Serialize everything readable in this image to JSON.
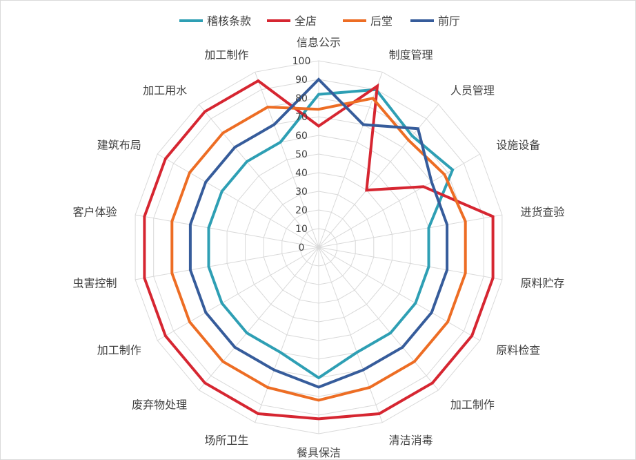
{
  "chart_data": {
    "type": "radar",
    "categories": [
      "信息公示",
      "制度管理",
      "人员管理",
      "设施设备",
      "进货查验",
      "原料贮存",
      "原料检查",
      "加工制作",
      "清洁消毒",
      "餐具保洁",
      "场所卫生",
      "废弃物处理",
      "加工制作",
      "虫害控制",
      "客户体验",
      "建筑布局",
      "加工用水",
      "加工制作"
    ],
    "radial_ticks": [
      "0",
      "10",
      "20",
      "30",
      "40",
      "50",
      "60",
      "70",
      "80",
      "90",
      "100"
    ],
    "rmin": 0,
    "rmax": 100,
    "series": [
      {
        "name": "稽核条款",
        "color": "#2E9FB4",
        "values": [
          82,
          90,
          78,
          83,
          60,
          60,
          60,
          60,
          60,
          70,
          60,
          60,
          60,
          60,
          60,
          60,
          60,
          60
        ]
      },
      {
        "name": "全店",
        "color": "#D62631",
        "values": [
          65,
          92,
          40,
          65,
          95,
          95,
          95,
          95,
          95,
          92,
          95,
          95,
          95,
          95,
          95,
          95,
          95,
          95
        ]
      },
      {
        "name": "后堂",
        "color": "#ED6D24",
        "values": [
          74,
          85,
          75,
          78,
          80,
          80,
          80,
          80,
          80,
          82,
          80,
          80,
          80,
          80,
          80,
          80,
          80,
          80
        ]
      },
      {
        "name": "前厅",
        "color": "#365C9B",
        "values": [
          90,
          70,
          83,
          70,
          70,
          70,
          70,
          70,
          70,
          75,
          70,
          70,
          70,
          70,
          70,
          70,
          70,
          70
        ]
      }
    ],
    "legend_position": "top",
    "grid": true
  }
}
